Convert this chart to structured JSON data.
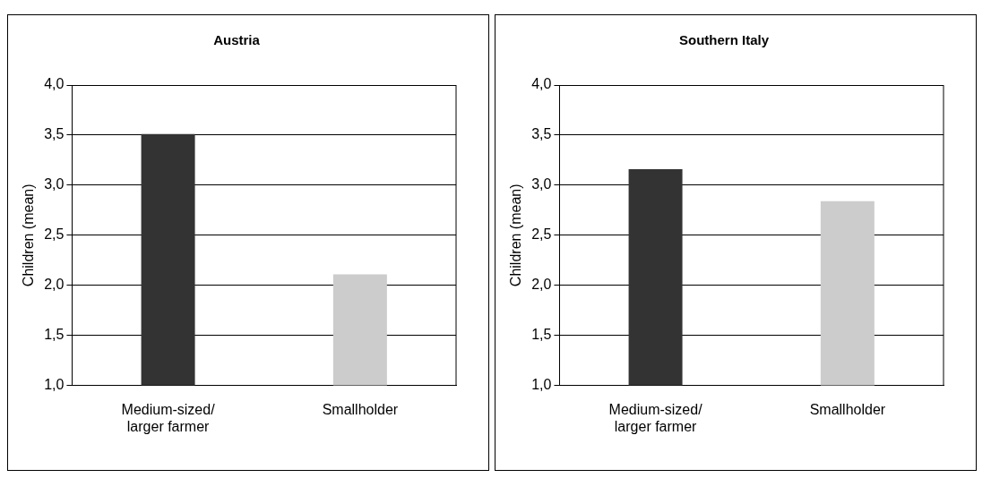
{
  "chart_data": [
    {
      "type": "bar",
      "title": "Austria",
      "ylabel": "Children (mean)",
      "categories": [
        "Medium-sized/ larger farmer",
        "Smallholder"
      ],
      "values": [
        3.51,
        2.11
      ],
      "colors": [
        "#333333",
        "#cccccc"
      ],
      "ylim": [
        1,
        4
      ],
      "yticks": [
        {
          "value": 1,
          "label": "1,0"
        },
        {
          "value": 1.5,
          "label": "1,5"
        },
        {
          "value": 2,
          "label": "2,0"
        },
        {
          "value": 2.5,
          "label": "2,5"
        },
        {
          "value": 3,
          "label": "3,0"
        },
        {
          "value": 3.5,
          "label": "3,5"
        },
        {
          "value": 4,
          "label": "4,0"
        }
      ],
      "grid": "y",
      "legend": false
    },
    {
      "type": "bar",
      "title": "Southern Italy",
      "ylabel": "Children (mean)",
      "categories": [
        "Medium-sized/ larger farmer",
        "Smallholder"
      ],
      "values": [
        3.16,
        2.84
      ],
      "colors": [
        "#333333",
        "#cccccc"
      ],
      "ylim": [
        1,
        4
      ],
      "yticks": [
        {
          "value": 1,
          "label": "1,0"
        },
        {
          "value": 1.5,
          "label": "1,5"
        },
        {
          "value": 2,
          "label": "2,0"
        },
        {
          "value": 2.5,
          "label": "2,5"
        },
        {
          "value": 3,
          "label": "3,0"
        },
        {
          "value": 3.5,
          "label": "3,5"
        },
        {
          "value": 4,
          "label": "4,0"
        }
      ],
      "grid": "y",
      "legend": false
    }
  ]
}
